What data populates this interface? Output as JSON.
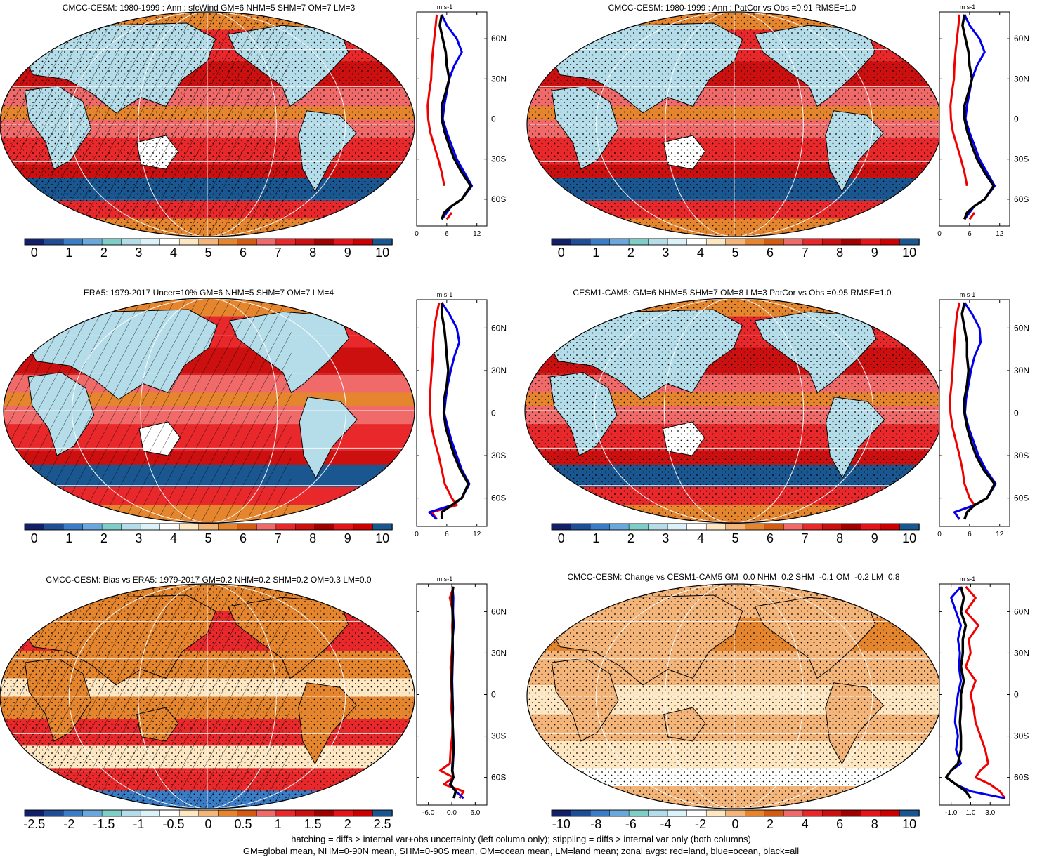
{
  "footer": {
    "line1": "hatching = diffs > internal var+obs uncertainty (left column only); stippling = diffs > internal var only (both columns)",
    "line2": "GM=global mean, NHM=0-90N mean, SHM=0-90S mean, OM=ocean mean, LM=land mean; zonal avgs: red=land, blue=ocean, black=all"
  },
  "colors": {
    "land": "#ee0000",
    "ocean": "#0000ee",
    "all": "#000000",
    "palette": [
      "#12206a",
      "#1f4e96",
      "#3a7dc7",
      "#68a8dc",
      "#7ecdc7",
      "#b4dde9",
      "#dbf2f8",
      "#ffffff",
      "#fde8c3",
      "#f3b57a",
      "#e5862f",
      "#d45c12",
      "#f06a6a",
      "#e8282b",
      "#cc1010",
      "#a00000",
      "#e4141a",
      "#cc0000",
      "#1a5790"
    ]
  },
  "chart_data": [
    {
      "type": "heatmap",
      "id": "p1",
      "title": "CMCC-CESM: 1980-1999 : Ann : sfcWind GM=6 NHM=5 SHM=7 OM=7 LM=3",
      "colorbar_ticks": [
        "0",
        "1",
        "2",
        "3",
        "4",
        "5",
        "6",
        "7",
        "8",
        "9",
        "10"
      ],
      "hatching": true,
      "stippling": true,
      "mode": "abs",
      "zonal": {
        "unit": "m s-1",
        "xlim": [
          0,
          14
        ],
        "xticks": [
          "0",
          "6",
          "12"
        ],
        "xtick_values": [
          0,
          6,
          12
        ],
        "yticks": [
          "60N",
          "30N",
          "0",
          "30S",
          "60S"
        ],
        "ytick_values": [
          60,
          30,
          0,
          -30,
          -60
        ],
        "ylim": [
          -80,
          80
        ],
        "lat": [
          78,
          70,
          60,
          50,
          40,
          30,
          20,
          10,
          0,
          -10,
          -20,
          -30,
          -40,
          -50,
          -60,
          -65,
          -70,
          -75
        ],
        "land": [
          4,
          3.8,
          3.5,
          3.2,
          3,
          2.9,
          2.5,
          2.2,
          2.3,
          2.7,
          3.5,
          4.3,
          5,
          5.5,
          null,
          null,
          7,
          6
        ],
        "ocean": [
          5,
          6,
          8,
          9,
          7.5,
          6.5,
          6,
          5.5,
          5.2,
          6,
          7,
          8,
          9.5,
          11,
          9,
          7,
          6,
          5
        ],
        "all": [
          5,
          4.6,
          5.2,
          5.8,
          6,
          6.5,
          5.8,
          5,
          5,
          5.6,
          6.5,
          7.5,
          9,
          10.8,
          9,
          7,
          5.5,
          5
        ]
      }
    },
    {
      "type": "heatmap",
      "id": "p2",
      "title": "CMCC-CESM: 1980-1999 : Ann : PatCor vs Obs =0.91 RMSE=1.0",
      "colorbar_ticks": [
        "0",
        "1",
        "2",
        "3",
        "4",
        "5",
        "6",
        "7",
        "8",
        "9",
        "10"
      ],
      "hatching": false,
      "stippling": true,
      "mode": "abs",
      "zonal": {
        "unit": "m s-1",
        "xlim": [
          0,
          14
        ],
        "xticks": [
          "0",
          "6",
          "12"
        ],
        "xtick_values": [
          0,
          6,
          12
        ],
        "yticks": [
          "60N",
          "30N",
          "0",
          "30S",
          "60S"
        ],
        "ytick_values": [
          60,
          30,
          0,
          -30,
          -60
        ],
        "ylim": [
          -80,
          80
        ],
        "lat": [
          78,
          70,
          60,
          50,
          40,
          30,
          20,
          10,
          0,
          -10,
          -20,
          -30,
          -40,
          -50,
          -60,
          -65,
          -70,
          -75
        ],
        "land": [
          4,
          3.8,
          3.5,
          3.2,
          3,
          2.9,
          2.5,
          2.2,
          2.3,
          2.7,
          3.5,
          4.3,
          5,
          5.5,
          null,
          null,
          7,
          6
        ],
        "ocean": [
          5,
          6,
          8,
          9,
          7.5,
          6.5,
          6,
          5.5,
          5.2,
          6,
          7,
          8,
          9.5,
          11,
          9,
          7,
          6,
          5
        ],
        "all": [
          5,
          4.6,
          5.2,
          5.8,
          6,
          6.5,
          5.8,
          5,
          5,
          5.6,
          6.5,
          7.5,
          9,
          10.8,
          9,
          7,
          5.5,
          5
        ]
      }
    },
    {
      "type": "heatmap",
      "id": "p3",
      "title": "ERA5: 1979-2017 Uncer=10% GM=6 NHM=5 SHM=7 OM=7 LM=4",
      "colorbar_ticks": [
        "0",
        "1",
        "2",
        "3",
        "4",
        "5",
        "6",
        "7",
        "8",
        "9",
        "10"
      ],
      "hatching": true,
      "stippling": false,
      "mode": "abs",
      "zonal": {
        "unit": "m s-1",
        "xlim": [
          0,
          14
        ],
        "xticks": [
          "0",
          "6",
          "12"
        ],
        "xtick_values": [
          0,
          6,
          12
        ],
        "yticks": [
          "60N",
          "30N",
          "0",
          "30S",
          "60S"
        ],
        "ytick_values": [
          60,
          30,
          0,
          -30,
          -60
        ],
        "ylim": [
          -80,
          80
        ],
        "lat": [
          78,
          70,
          60,
          50,
          40,
          30,
          20,
          10,
          0,
          -10,
          -20,
          -30,
          -40,
          -50,
          -60,
          -65,
          -70,
          -75
        ],
        "land": [
          4.5,
          4,
          3.5,
          3.3,
          3.2,
          3,
          2.8,
          2.6,
          2.7,
          3,
          3.6,
          4.4,
          5,
          5.6,
          7,
          8,
          3,
          4
        ],
        "ocean": [
          5,
          6.5,
          8,
          8.5,
          7.5,
          6.8,
          6.2,
          5.8,
          5.5,
          6.2,
          7,
          8,
          9,
          10.5,
          9,
          7,
          2.5,
          4
        ],
        "all": [
          5,
          5,
          5.5,
          5.8,
          6,
          6.3,
          6,
          5.5,
          5.4,
          5.8,
          6.6,
          7.5,
          8.7,
          10.3,
          9,
          7,
          5,
          5
        ]
      }
    },
    {
      "type": "heatmap",
      "id": "p4",
      "title": "CESM1-CAM5: GM=6 NHM=5 SHM=7 OM=8 LM=3 PatCor vs Obs =0.95 RMSE=1.0",
      "colorbar_ticks": [
        "0",
        "1",
        "2",
        "3",
        "4",
        "5",
        "6",
        "7",
        "8",
        "9",
        "10"
      ],
      "hatching": false,
      "stippling": true,
      "mode": "abs",
      "zonal": {
        "unit": "m s-1",
        "xlim": [
          0,
          14
        ],
        "xticks": [
          "0",
          "6",
          "12"
        ],
        "xtick_values": [
          0,
          6,
          12
        ],
        "yticks": [
          "60N",
          "30N",
          "0",
          "30S",
          "60S"
        ],
        "ytick_values": [
          60,
          30,
          0,
          -30,
          -60
        ],
        "ylim": [
          -80,
          80
        ],
        "lat": [
          78,
          70,
          60,
          50,
          40,
          30,
          20,
          10,
          0,
          -10,
          -20,
          -30,
          -40,
          -50,
          -60,
          -65,
          -70,
          -75
        ],
        "land": [
          4,
          3.5,
          3.2,
          3,
          2.8,
          2.6,
          2.4,
          2.1,
          2.2,
          2.6,
          3.3,
          4,
          4.6,
          5,
          6,
          7,
          3,
          4
        ],
        "ocean": [
          5,
          6.5,
          8,
          8.2,
          7,
          6.3,
          5.8,
          5.3,
          5.1,
          5.8,
          6.8,
          7.8,
          9.3,
          11.2,
          9.5,
          7,
          3,
          4
        ],
        "all": [
          5,
          4.5,
          5,
          5.5,
          5.5,
          5.8,
          5.5,
          5,
          5,
          5.5,
          6.3,
          7.3,
          8.8,
          11,
          9.5,
          7,
          5.5,
          5
        ]
      }
    },
    {
      "type": "heatmap",
      "id": "p5",
      "title": "CMCC-CESM: Bias vs ERA5: 1979-2017 GM=0.2 NHM=0.2 SHM=0.2 OM=0.3 LM=0.0",
      "colorbar_ticks": [
        "-2.5",
        "-2",
        "-1.5",
        "-1",
        "-0.5",
        "0",
        "0.5",
        "1",
        "1.5",
        "2",
        "2.5"
      ],
      "hatching": true,
      "stippling": true,
      "mode": "diff",
      "zonal": {
        "unit": "m s-1",
        "xlim": [
          -9,
          9
        ],
        "xticks": [
          "-6.0",
          "0.0",
          "6.0"
        ],
        "xtick_values": [
          -6,
          0,
          6
        ],
        "yticks": [
          "60N",
          "30N",
          "0",
          "30S",
          "60S"
        ],
        "ytick_values": [
          60,
          30,
          0,
          -30,
          -60
        ],
        "ylim": [
          -80,
          80
        ],
        "lat": [
          78,
          70,
          60,
          50,
          40,
          30,
          20,
          10,
          0,
          -10,
          -20,
          -30,
          -40,
          -50,
          -55,
          -60,
          -65,
          -70,
          -75
        ],
        "land": [
          0.5,
          -0.5,
          0.3,
          0.1,
          0.2,
          0,
          -0.3,
          -0.2,
          0,
          -0.1,
          0.2,
          0.1,
          -0.3,
          -0.5,
          -3,
          0.4,
          -2,
          3,
          2
        ],
        "ocean": [
          0.2,
          0.4,
          0.3,
          0.5,
          0.2,
          0.3,
          0.2,
          0.1,
          0.2,
          0.3,
          0.2,
          0.4,
          0.5,
          0.3,
          0.2,
          0.4,
          -0.5,
          1,
          3
        ],
        "all": [
          0.3,
          0.1,
          0.2,
          0.3,
          0.2,
          0.2,
          0.1,
          0,
          0.1,
          0.2,
          0.2,
          0.3,
          0.4,
          0.2,
          0.1,
          0.4,
          -0.3,
          1,
          0.5
        ]
      }
    },
    {
      "type": "heatmap",
      "id": "p6",
      "title": "CMCC-CESM: Change vs CESM1-CAM5 GM=0.0 NHM=0.2 SHM=-0.1 OM=-0.2 LM=0.8",
      "colorbar_ticks": [
        "-10",
        "-8",
        "-6",
        "-4",
        "-2",
        "0",
        "2",
        "4",
        "6",
        "8",
        "10"
      ],
      "hatching": false,
      "stippling": true,
      "mode": "change",
      "zonal": {
        "unit": "m s-1",
        "xlim": [
          -2.2,
          5.0
        ],
        "xticks": [
          "-1.0",
          "1.0",
          "3.0"
        ],
        "xtick_values": [
          -1,
          1,
          3
        ],
        "yticks": [
          "60N",
          "30N",
          "0",
          "30S",
          "60S"
        ],
        "ytick_values": [
          60,
          30,
          0,
          -30,
          -60
        ],
        "ylim": [
          -80,
          80
        ],
        "lat": [
          78,
          70,
          60,
          50,
          40,
          30,
          20,
          10,
          0,
          -10,
          -20,
          -30,
          -40,
          -50,
          -55,
          -60,
          -65,
          -70,
          -75
        ],
        "land": [
          0.5,
          1.5,
          0.5,
          1.8,
          0.8,
          1,
          0.5,
          1.5,
          1,
          1.3,
          1.5,
          2,
          2.5,
          2.8,
          2,
          1.5,
          3,
          4,
          4.5
        ],
        "ocean": [
          0,
          -1,
          -0.5,
          0,
          -0.3,
          -0.1,
          -0.2,
          0,
          -0.3,
          -0.5,
          -0.6,
          -0.3,
          -0.5,
          0,
          -1,
          -1.5,
          -0.5,
          1,
          4.5
        ],
        "all": [
          0,
          0.3,
          0,
          0.5,
          0.2,
          0.2,
          0,
          0.3,
          0,
          0,
          -0.1,
          0,
          0,
          -0.3,
          -1,
          -1.5,
          -0.5,
          0.5,
          1
        ]
      }
    }
  ]
}
